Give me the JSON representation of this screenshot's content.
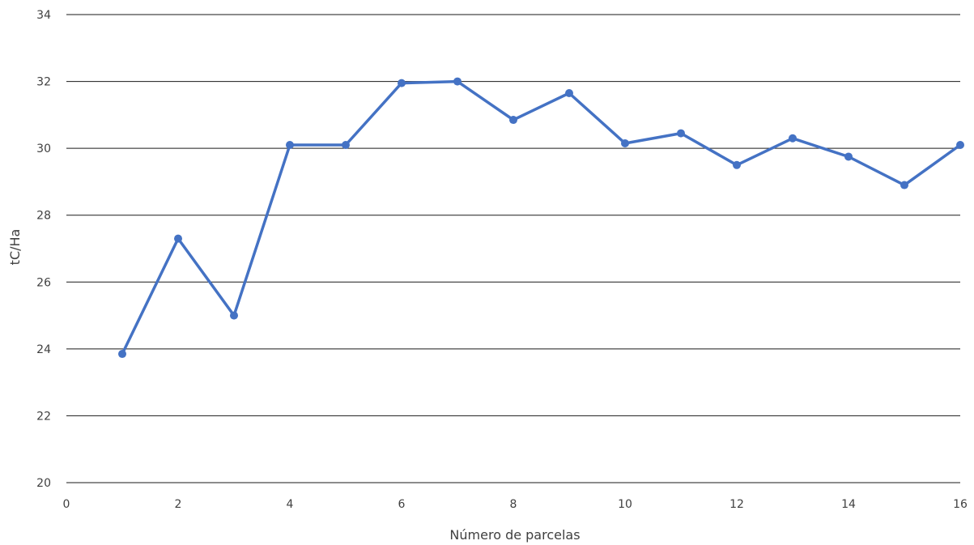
{
  "chart_data": {
    "type": "line",
    "xlabel": "Número de parcelas",
    "ylabel": "tC/Ha",
    "xlim": [
      0,
      16
    ],
    "ylim": [
      20,
      34
    ],
    "xticks": [
      0,
      2,
      4,
      6,
      8,
      10,
      12,
      14,
      16
    ],
    "yticks": [
      20,
      22,
      24,
      26,
      28,
      30,
      32,
      34
    ],
    "grid": "horizontal",
    "series": [
      {
        "color": "#4472C4",
        "x": [
          1,
          2,
          3,
          4,
          5,
          6,
          7,
          8,
          9,
          10,
          11,
          12,
          13,
          14,
          15,
          16
        ],
        "y": [
          23.85,
          27.3,
          25.0,
          30.1,
          30.1,
          31.95,
          32.0,
          30.85,
          31.65,
          30.15,
          30.45,
          29.5,
          30.3,
          29.75,
          28.9,
          30.1
        ]
      }
    ]
  }
}
